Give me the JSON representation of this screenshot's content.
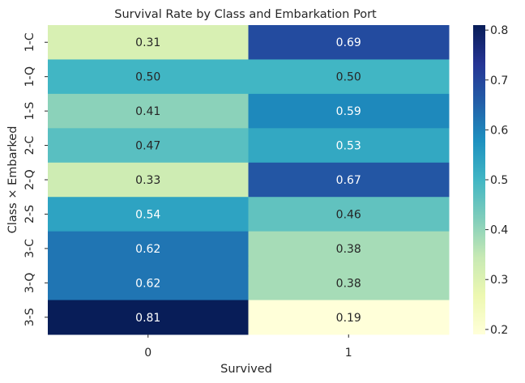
{
  "chart_data": {
    "type": "heatmap",
    "title": "Survival Rate by Class and Embarkation Port",
    "xlabel": "Survived",
    "ylabel": "Class × Embarked",
    "x_categories": [
      "0",
      "1"
    ],
    "y_categories": [
      "1-C",
      "1-Q",
      "1-S",
      "2-C",
      "2-Q",
      "2-S",
      "3-C",
      "3-Q",
      "3-S"
    ],
    "values": [
      [
        0.31,
        0.69
      ],
      [
        0.5,
        0.5
      ],
      [
        0.41,
        0.59
      ],
      [
        0.47,
        0.53
      ],
      [
        0.33,
        0.67
      ],
      [
        0.54,
        0.46
      ],
      [
        0.62,
        0.38
      ],
      [
        0.62,
        0.38
      ],
      [
        0.81,
        0.19
      ]
    ],
    "colormap": "YlGnBu",
    "colorbar": {
      "min": 0.19,
      "max": 0.81,
      "ticks": [
        "0.2",
        "0.3",
        "0.4",
        "0.5",
        "0.6",
        "0.7",
        "0.8"
      ]
    },
    "annotations": true,
    "grid": false
  }
}
